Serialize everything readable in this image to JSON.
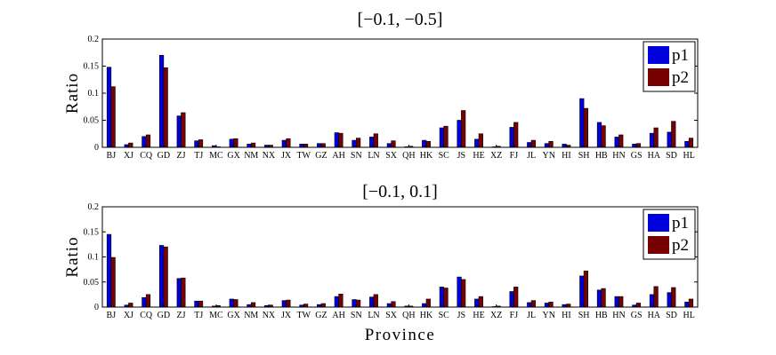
{
  "chart_data": [
    {
      "type": "bar",
      "title": "[−0.1, −0.5]",
      "xlabel": "",
      "ylabel": "Ratio",
      "ylim": [
        0,
        0.2
      ],
      "yticks": [
        "0",
        "0.05",
        "0.1",
        "0.15",
        "0.2"
      ],
      "legend_position": "top-right",
      "categories": [
        "BJ",
        "XJ",
        "CQ",
        "GD",
        "ZJ",
        "TJ",
        "MC",
        "GX",
        "NM",
        "NX",
        "JX",
        "TW",
        "GZ",
        "AH",
        "SN",
        "LN",
        "SX",
        "QH",
        "HK",
        "SC",
        "JS",
        "HE",
        "XZ",
        "FJ",
        "JL",
        "YN",
        "HI",
        "SH",
        "HB",
        "HN",
        "GS",
        "HA",
        "SD",
        "HL"
      ],
      "series": [
        {
          "name": "p1",
          "color": "#0000dd",
          "values": [
            0.148,
            0.005,
            0.02,
            0.17,
            0.058,
            0.012,
            0.003,
            0.015,
            0.006,
            0.004,
            0.013,
            0.006,
            0.007,
            0.027,
            0.013,
            0.019,
            0.007,
            0.001,
            0.013,
            0.036,
            0.05,
            0.015,
            0.001,
            0.037,
            0.009,
            0.007,
            0.006,
            0.09,
            0.046,
            0.019,
            0.006,
            0.026,
            0.028,
            0.011
          ]
        },
        {
          "name": "p2",
          "color": "#770000",
          "values": [
            0.112,
            0.008,
            0.023,
            0.147,
            0.064,
            0.014,
            0.001,
            0.016,
            0.008,
            0.004,
            0.016,
            0.006,
            0.007,
            0.026,
            0.017,
            0.025,
            0.012,
            0.002,
            0.011,
            0.039,
            0.068,
            0.025,
            0.002,
            0.046,
            0.013,
            0.011,
            0.004,
            0.072,
            0.04,
            0.023,
            0.007,
            0.036,
            0.048,
            0.017
          ]
        }
      ]
    },
    {
      "type": "bar",
      "title": "[−0.1, 0.1]",
      "xlabel": "Province",
      "ylabel": "Ratio",
      "ylim": [
        0,
        0.2
      ],
      "yticks": [
        "0",
        "0.05",
        "0.1",
        "0.15",
        "0.2"
      ],
      "legend_position": "top-right",
      "categories": [
        "BJ",
        "XJ",
        "CQ",
        "GD",
        "ZJ",
        "TJ",
        "MC",
        "GX",
        "NM",
        "NX",
        "JX",
        "TW",
        "GZ",
        "AH",
        "SN",
        "LN",
        "SX",
        "QH",
        "HK",
        "SC",
        "JS",
        "HE",
        "XZ",
        "FJ",
        "JL",
        "YN",
        "HI",
        "SH",
        "HB",
        "HN",
        "GS",
        "HA",
        "SD",
        "HL"
      ],
      "series": [
        {
          "name": "p1",
          "color": "#0000dd",
          "values": [
            0.145,
            0.004,
            0.019,
            0.123,
            0.057,
            0.012,
            0.002,
            0.016,
            0.005,
            0.003,
            0.013,
            0.004,
            0.005,
            0.021,
            0.015,
            0.02,
            0.007,
            0.002,
            0.007,
            0.04,
            0.06,
            0.016,
            0.001,
            0.031,
            0.009,
            0.008,
            0.005,
            0.062,
            0.034,
            0.021,
            0.004,
            0.025,
            0.029,
            0.01
          ]
        },
        {
          "name": "p2",
          "color": "#770000",
          "values": [
            0.099,
            0.008,
            0.025,
            0.12,
            0.058,
            0.012,
            0.003,
            0.015,
            0.009,
            0.004,
            0.014,
            0.006,
            0.007,
            0.026,
            0.014,
            0.025,
            0.011,
            0.002,
            0.016,
            0.038,
            0.055,
            0.021,
            0.002,
            0.04,
            0.013,
            0.01,
            0.006,
            0.072,
            0.037,
            0.021,
            0.008,
            0.041,
            0.039,
            0.016
          ]
        }
      ]
    }
  ]
}
